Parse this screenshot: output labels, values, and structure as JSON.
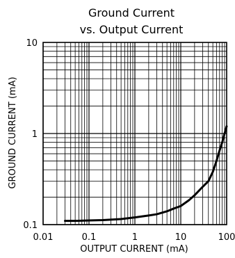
{
  "chart_data": {
    "type": "line",
    "title": "Ground Current",
    "subtitle": "vs. Output Current",
    "xlabel": "OUTPUT CURRENT (mA)",
    "ylabel": "GROUND CURRENT (mA)",
    "xscale": "log",
    "yscale": "log",
    "xlim": [
      0.01,
      100
    ],
    "ylim": [
      0.1,
      10
    ],
    "grid": true,
    "x_ticks": [
      0.01,
      0.1,
      1,
      10,
      100
    ],
    "x_tick_labels": [
      "0.01",
      "0.1",
      "1",
      "10",
      "100"
    ],
    "y_ticks": [
      0.1,
      1,
      10
    ],
    "y_tick_labels": [
      "0.1",
      "1",
      "10"
    ],
    "series": [
      {
        "color": "#000000",
        "x": [
          0.03,
          0.05,
          0.1,
          0.2,
          0.5,
          1,
          2,
          3,
          5,
          7,
          10,
          15,
          20,
          30,
          40,
          50,
          60,
          70,
          80,
          90,
          100
        ],
        "y": [
          0.11,
          0.11,
          0.111,
          0.112,
          0.115,
          0.12,
          0.126,
          0.13,
          0.14,
          0.15,
          0.16,
          0.185,
          0.21,
          0.26,
          0.3,
          0.38,
          0.5,
          0.65,
          0.8,
          1.0,
          1.2
        ]
      }
    ]
  }
}
